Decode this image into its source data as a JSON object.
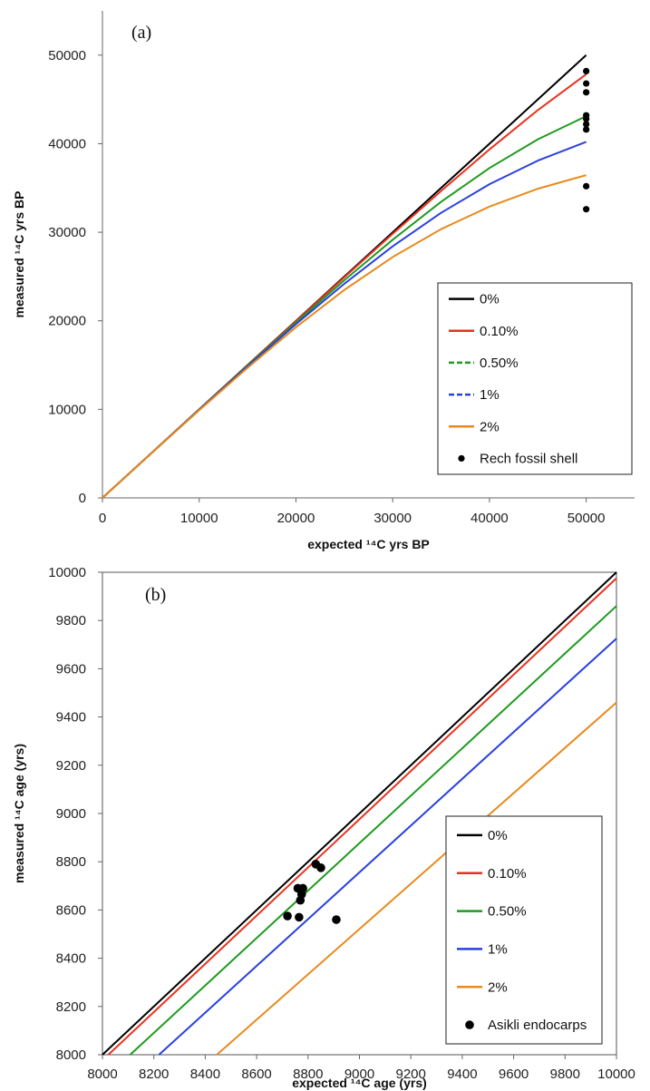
{
  "chart_data": [
    {
      "type": "line",
      "panel_label": "(a)",
      "xlabel": "expected ¹⁴C yrs BP",
      "ylabel": "measured ¹⁴C yrs BP",
      "xlim": [
        0,
        55000
      ],
      "ylim": [
        0,
        55000
      ],
      "xticks": [
        0,
        10000,
        20000,
        30000,
        40000,
        50000
      ],
      "yticks": [
        0,
        10000,
        20000,
        30000,
        40000,
        50000
      ],
      "grid": false,
      "legend_position": "bottom-right",
      "series": [
        {
          "name": "0%",
          "color": "#000000",
          "dash": "solid",
          "x": [
            0,
            5000,
            10000,
            15000,
            20000,
            25000,
            30000,
            35000,
            40000,
            45000,
            50000
          ],
          "y": [
            0,
            5000,
            10000,
            15000,
            20000,
            25000,
            30000,
            35000,
            40000,
            45000,
            50000
          ]
        },
        {
          "name": "0.10%",
          "color": "#e8321e",
          "dash": "solid",
          "x": [
            0,
            5000,
            10000,
            15000,
            20000,
            25000,
            30000,
            35000,
            40000,
            45000,
            50000
          ],
          "y": [
            0,
            4999,
            9995,
            14985,
            19963,
            24918,
            29830,
            34663,
            39353,
            43798,
            47840
          ]
        },
        {
          "name": "0.50%",
          "color": "#1f9a1f",
          "dash": "dashed",
          "x": [
            0,
            5000,
            10000,
            15000,
            20000,
            25000,
            30000,
            35000,
            40000,
            45000,
            50000
          ],
          "y": [
            0,
            4994,
            9974,
            14922,
            19807,
            24581,
            29162,
            33430,
            37246,
            40497,
            43114
          ]
        },
        {
          "name": "1%",
          "color": "#2940e0",
          "dash": "dashed",
          "x": [
            0,
            5000,
            10000,
            15000,
            20000,
            25000,
            30000,
            35000,
            40000,
            45000,
            50000
          ],
          "y": [
            0,
            4988,
            9947,
            14845,
            19620,
            24181,
            28411,
            32189,
            35427,
            38095,
            40212
          ]
        },
        {
          "name": "2%",
          "color": "#e88a1e",
          "dash": "solid",
          "x": [
            0,
            5000,
            10000,
            15000,
            20000,
            25000,
            30000,
            35000,
            40000,
            45000,
            50000
          ],
          "y": [
            0,
            4976,
            9895,
            14695,
            19273,
            23485,
            27201,
            30343,
            32896,
            34912,
            36451
          ]
        }
      ],
      "points": {
        "name": "Rech fossil shell",
        "color": "#000000",
        "x": [
          50000,
          50000,
          50000,
          50000,
          50000,
          50000,
          50000,
          50000,
          50000
        ],
        "y": [
          48200,
          46800,
          45800,
          43200,
          42800,
          42200,
          41600,
          35200,
          32600
        ]
      }
    },
    {
      "type": "line",
      "panel_label": "(b)",
      "xlabel": "expected ¹⁴C age (yrs)",
      "ylabel": "measured ¹⁴C age (yrs)",
      "xlim": [
        8000,
        10000
      ],
      "ylim": [
        8000,
        10000
      ],
      "xticks": [
        8000,
        8200,
        8400,
        8600,
        8800,
        9000,
        9200,
        9400,
        9600,
        9800,
        10000
      ],
      "yticks": [
        8000,
        8200,
        8400,
        8600,
        8800,
        9000,
        9200,
        9400,
        9600,
        9800,
        10000
      ],
      "grid": false,
      "legend_position": "bottom-right",
      "series": [
        {
          "name": "0%",
          "color": "#000000",
          "dash": "solid",
          "x": [
            8000,
            10000
          ],
          "y": [
            8000,
            10000
          ]
        },
        {
          "name": "0.10%",
          "color": "#e8321e",
          "dash": "solid",
          "x": [
            8023,
            10000
          ],
          "y": [
            8000,
            9975
          ]
        },
        {
          "name": "0.50%",
          "color": "#1f9a1f",
          "dash": "solid",
          "x": [
            8108,
            10000
          ],
          "y": [
            8000,
            9860
          ]
        },
        {
          "name": "1%",
          "color": "#2940e0",
          "dash": "solid",
          "x": [
            8220,
            10000
          ],
          "y": [
            8000,
            9725
          ]
        },
        {
          "name": "2%",
          "color": "#e88a1e",
          "dash": "solid",
          "x": [
            8445,
            10000
          ],
          "y": [
            8000,
            9460
          ]
        }
      ],
      "points": {
        "name": "Asikli endocarps",
        "color": "#000000",
        "x": [
          8830,
          8850,
          8760,
          8780,
          8775,
          8770,
          8720,
          8765,
          8910
        ],
        "y": [
          8790,
          8775,
          8690,
          8690,
          8665,
          8640,
          8575,
          8570,
          8560
        ]
      }
    }
  ]
}
